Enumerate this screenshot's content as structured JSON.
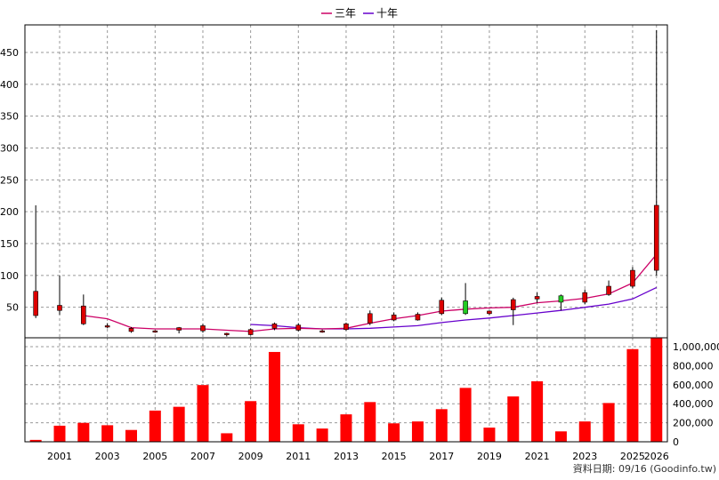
{
  "legend": {
    "three_year": "三年",
    "ten_year": "十年"
  },
  "source_text": "資料日期: 09/16  (Goodinfo.tw)",
  "colors": {
    "up_body": "#dd0000",
    "down_body": "#22cc22",
    "volume_bar": "#ff0000",
    "three_year_line": "#cc0066",
    "ten_year_line": "#6600cc",
    "grid": "#999999"
  },
  "chart_data": {
    "type": "candlestick_with_volume",
    "x_tick_labels": [
      "2001",
      "2003",
      "2005",
      "2007",
      "2009",
      "2011",
      "2013",
      "2015",
      "2017",
      "2019",
      "2021",
      "2023",
      "2025",
      "2026"
    ],
    "price_axis": {
      "ticks": [
        50,
        100,
        150,
        200,
        250,
        300,
        350,
        400,
        450
      ],
      "range": [
        0,
        490
      ]
    },
    "volume_axis": {
      "ticks": [
        "0",
        "200,000",
        "400,000",
        "600,000",
        "800,000",
        "1,000,000"
      ],
      "range": [
        0,
        1100000
      ]
    },
    "years": [
      2000,
      2001,
      2002,
      2003,
      2004,
      2005,
      2006,
      2007,
      2008,
      2009,
      2010,
      2011,
      2012,
      2013,
      2014,
      2015,
      2016,
      2017,
      2018,
      2019,
      2020,
      2021,
      2022,
      2023,
      2024,
      2025,
      2026
    ],
    "candles": [
      {
        "year": 2000,
        "open": 37,
        "high": 210,
        "low": 33,
        "close": 75
      },
      {
        "year": 2001,
        "open": 45,
        "high": 100,
        "low": 38,
        "close": 53
      },
      {
        "year": 2002,
        "open": 24,
        "high": 70,
        "low": 22,
        "close": 52
      },
      {
        "year": 2003,
        "open": 20,
        "high": 25,
        "low": 17,
        "close": 21
      },
      {
        "year": 2004,
        "open": 12,
        "high": 19,
        "low": 10,
        "close": 17
      },
      {
        "year": 2005,
        "open": 12,
        "high": 14,
        "low": 10,
        "close": 13
      },
      {
        "year": 2006,
        "open": 14,
        "high": 19,
        "low": 9,
        "close": 18
      },
      {
        "year": 2007,
        "open": 13,
        "high": 24,
        "low": 10,
        "close": 21
      },
      {
        "year": 2008,
        "open": 7,
        "high": 10,
        "low": 4,
        "close": 9
      },
      {
        "year": 2009,
        "open": 7,
        "high": 17,
        "low": 6,
        "close": 15
      },
      {
        "year": 2010,
        "open": 17,
        "high": 26,
        "low": 14,
        "close": 24
      },
      {
        "year": 2011,
        "open": 14,
        "high": 25,
        "low": 12,
        "close": 22
      },
      {
        "year": 2012,
        "open": 12,
        "high": 15,
        "low": 10,
        "close": 13
      },
      {
        "year": 2013,
        "open": 15,
        "high": 26,
        "low": 13,
        "close": 24
      },
      {
        "year": 2014,
        "open": 25,
        "high": 45,
        "low": 22,
        "close": 40
      },
      {
        "year": 2015,
        "open": 30,
        "high": 42,
        "low": 28,
        "close": 38
      },
      {
        "year": 2016,
        "open": 30,
        "high": 42,
        "low": 29,
        "close": 39
      },
      {
        "year": 2017,
        "open": 40,
        "high": 65,
        "low": 38,
        "close": 61
      },
      {
        "year": 2018,
        "open": 60,
        "high": 88,
        "low": 38,
        "close": 40
      },
      {
        "year": 2019,
        "open": 40,
        "high": 45,
        "low": 38,
        "close": 44
      },
      {
        "year": 2020,
        "open": 46,
        "high": 65,
        "low": 22,
        "close": 62
      },
      {
        "year": 2021,
        "open": 63,
        "high": 73,
        "low": 57,
        "close": 67
      },
      {
        "year": 2022,
        "open": 68,
        "high": 70,
        "low": 45,
        "close": 58
      },
      {
        "year": 2023,
        "open": 58,
        "high": 78,
        "low": 55,
        "close": 73
      },
      {
        "year": 2024,
        "open": 70,
        "high": 92,
        "low": 68,
        "close": 83
      },
      {
        "year": 2025,
        "open": 83,
        "high": 113,
        "low": 80,
        "close": 108
      },
      {
        "year": 2026,
        "open": 108,
        "high": 485,
        "low": 100,
        "close": 210
      }
    ],
    "three_year_ma": [
      {
        "year": 2002,
        "value": 37
      },
      {
        "year": 2003,
        "value": 32
      },
      {
        "year": 2004,
        "value": 18
      },
      {
        "year": 2005,
        "value": 16
      },
      {
        "year": 2006,
        "value": 16
      },
      {
        "year": 2007,
        "value": 16
      },
      {
        "year": 2008,
        "value": 14
      },
      {
        "year": 2009,
        "value": 12
      },
      {
        "year": 2010,
        "value": 16
      },
      {
        "year": 2011,
        "value": 17
      },
      {
        "year": 2012,
        "value": 16
      },
      {
        "year": 2013,
        "value": 17
      },
      {
        "year": 2014,
        "value": 25
      },
      {
        "year": 2015,
        "value": 32
      },
      {
        "year": 2016,
        "value": 37
      },
      {
        "year": 2017,
        "value": 44
      },
      {
        "year": 2018,
        "value": 47
      },
      {
        "year": 2019,
        "value": 49
      },
      {
        "year": 2020,
        "value": 50
      },
      {
        "year": 2021,
        "value": 57
      },
      {
        "year": 2022,
        "value": 60
      },
      {
        "year": 2023,
        "value": 64
      },
      {
        "year": 2024,
        "value": 71
      },
      {
        "year": 2025,
        "value": 88
      },
      {
        "year": 2026,
        "value": 133
      }
    ],
    "ten_year_ma": [
      {
        "year": 2009,
        "value": 23
      },
      {
        "year": 2010,
        "value": 21
      },
      {
        "year": 2011,
        "value": 18
      },
      {
        "year": 2012,
        "value": 16
      },
      {
        "year": 2013,
        "value": 16
      },
      {
        "year": 2014,
        "value": 17
      },
      {
        "year": 2015,
        "value": 19
      },
      {
        "year": 2016,
        "value": 21
      },
      {
        "year": 2017,
        "value": 26
      },
      {
        "year": 2018,
        "value": 30
      },
      {
        "year": 2019,
        "value": 33
      },
      {
        "year": 2020,
        "value": 37
      },
      {
        "year": 2021,
        "value": 41
      },
      {
        "year": 2022,
        "value": 45
      },
      {
        "year": 2023,
        "value": 50
      },
      {
        "year": 2024,
        "value": 55
      },
      {
        "year": 2025,
        "value": 63
      },
      {
        "year": 2026,
        "value": 81
      }
    ],
    "volume": [
      {
        "year": 2000,
        "value": 20000
      },
      {
        "year": 2001,
        "value": 170000
      },
      {
        "year": 2002,
        "value": 200000
      },
      {
        "year": 2003,
        "value": 175000
      },
      {
        "year": 2004,
        "value": 125000
      },
      {
        "year": 2005,
        "value": 330000
      },
      {
        "year": 2006,
        "value": 370000
      },
      {
        "year": 2007,
        "value": 600000
      },
      {
        "year": 2008,
        "value": 90000
      },
      {
        "year": 2009,
        "value": 430000
      },
      {
        "year": 2010,
        "value": 950000
      },
      {
        "year": 2011,
        "value": 185000
      },
      {
        "year": 2012,
        "value": 140000
      },
      {
        "year": 2013,
        "value": 290000
      },
      {
        "year": 2014,
        "value": 420000
      },
      {
        "year": 2015,
        "value": 195000
      },
      {
        "year": 2016,
        "value": 215000
      },
      {
        "year": 2017,
        "value": 345000
      },
      {
        "year": 2018,
        "value": 570000
      },
      {
        "year": 2019,
        "value": 150000
      },
      {
        "year": 2020,
        "value": 480000
      },
      {
        "year": 2021,
        "value": 640000
      },
      {
        "year": 2022,
        "value": 110000
      },
      {
        "year": 2023,
        "value": 215000
      },
      {
        "year": 2024,
        "value": 410000
      },
      {
        "year": 2025,
        "value": 980000
      },
      {
        "year": 2026,
        "value": 1120000
      }
    ]
  }
}
